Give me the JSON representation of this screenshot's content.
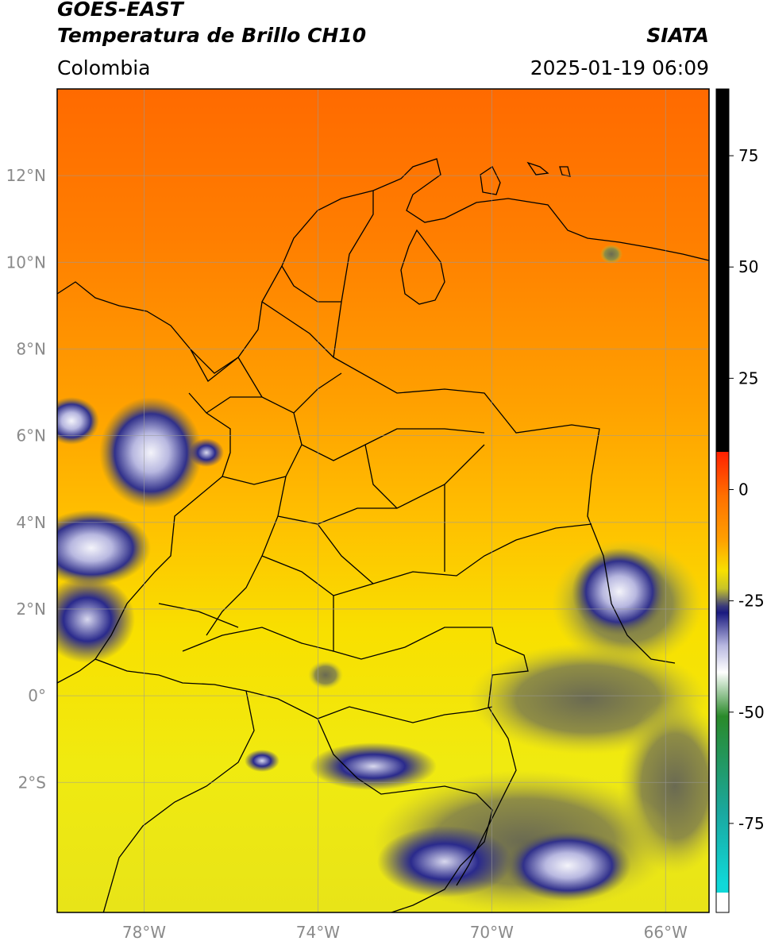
{
  "header": {
    "satellite": "GOES-EAST",
    "product": "Temperatura de Brillo CH10",
    "source": "SIATA",
    "region": "Colombia",
    "datetime": "2025-01-19 06:09"
  },
  "map": {
    "lon_range": [
      -80,
      -65
    ],
    "lat_range": [
      -5,
      14
    ],
    "lat_ticks": [
      {
        "value": 12,
        "label": "12°N"
      },
      {
        "value": 10,
        "label": "10°N"
      },
      {
        "value": 8,
        "label": "8°N"
      },
      {
        "value": 6,
        "label": "6°N"
      },
      {
        "value": 4,
        "label": "4°N"
      },
      {
        "value": 2,
        "label": "2°N"
      },
      {
        "value": 0,
        "label": "0°"
      },
      {
        "value": -2,
        "label": "2°S"
      }
    ],
    "lon_ticks": [
      {
        "value": -78,
        "label": "78°W"
      },
      {
        "value": -74,
        "label": "74°W"
      },
      {
        "value": -70,
        "label": "70°W"
      },
      {
        "value": -66,
        "label": "66°W"
      }
    ],
    "grid": true
  },
  "colorbar": {
    "units_range": [
      -95,
      90
    ],
    "ticks": [
      {
        "value": 75,
        "label": "75"
      },
      {
        "value": 50,
        "label": "50"
      },
      {
        "value": 25,
        "label": "25"
      },
      {
        "value": 0,
        "label": "0"
      },
      {
        "value": -25,
        "label": "-25"
      },
      {
        "value": -50,
        "label": "-50"
      },
      {
        "value": -75,
        "label": "-75"
      }
    ],
    "colors": {
      "black": "#000000",
      "red": "#ff2200",
      "orange": "#ff8c00",
      "yellow": "#f4f000",
      "olive": "#7a7a3a",
      "navy": "#1a1a80",
      "white": "#ffffff",
      "green": "#2a8a2a",
      "cyan": "#10d8d8"
    }
  }
}
